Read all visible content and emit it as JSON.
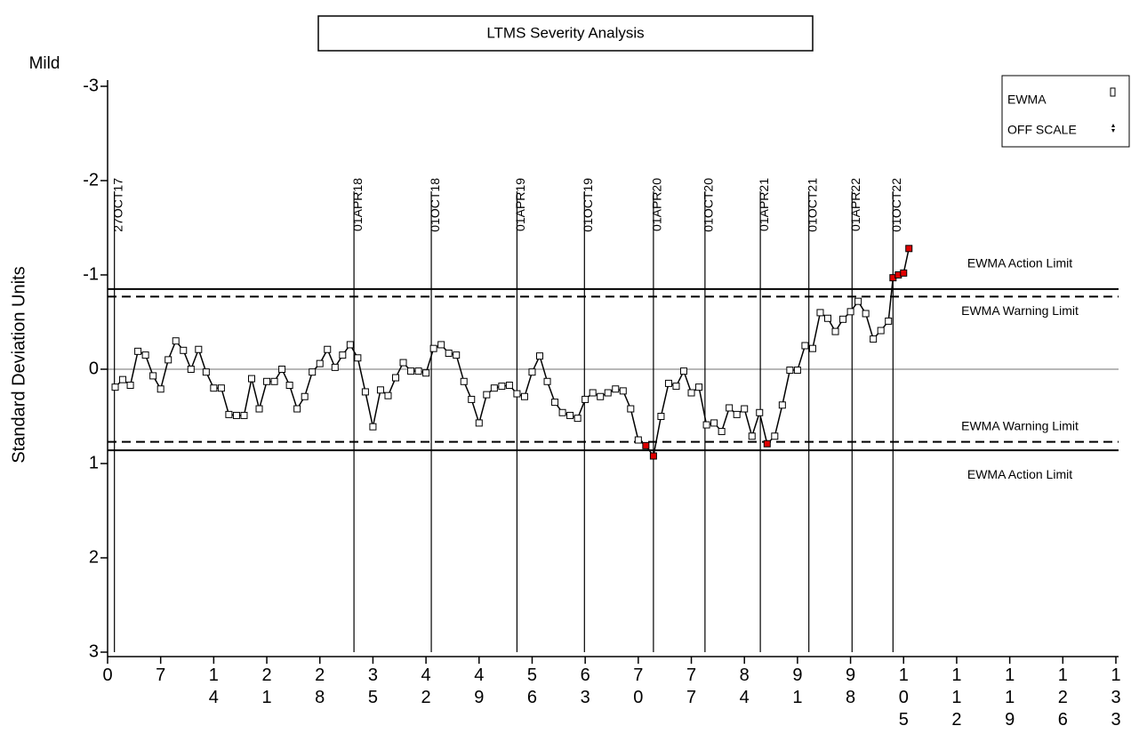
{
  "chart_data": {
    "type": "line",
    "title": "LTMS Severity Analysis",
    "subtitle": "Mild",
    "y_label": "Standard Deviation Units",
    "xlim": [
      0,
      133
    ],
    "xticks": [
      0,
      7,
      14,
      21,
      28,
      35,
      42,
      49,
      56,
      63,
      70,
      77,
      84,
      91,
      98,
      105,
      112,
      119,
      126,
      133
    ],
    "ylim": [
      -3,
      3
    ],
    "yticks": [
      -3,
      -2,
      -1,
      0,
      1,
      2,
      3
    ],
    "y_inverted": true,
    "zero_line_color": "#a0a0a0",
    "alarm_color": "#e00000",
    "series": [
      {
        "name": "EWMA",
        "color": "#000000",
        "x": [
          1,
          2,
          3,
          4,
          5,
          6,
          7,
          8,
          9,
          10,
          11,
          12,
          13,
          14,
          15,
          16,
          17,
          18,
          19,
          20,
          21,
          22,
          23,
          24,
          25,
          26,
          27,
          28,
          29,
          30,
          31,
          32,
          33,
          34,
          35,
          36,
          37,
          38,
          39,
          40,
          41,
          42,
          43,
          44,
          45,
          46,
          47,
          48,
          49,
          50,
          51,
          52,
          53,
          54,
          55,
          56,
          57,
          58,
          59,
          60,
          61,
          62,
          63,
          64,
          65,
          66,
          67,
          68,
          69,
          70,
          71,
          72,
          73,
          74,
          75,
          76,
          77,
          78,
          79,
          80,
          81,
          82,
          83,
          84,
          85,
          86,
          87,
          88,
          89,
          90,
          91,
          92,
          93,
          94,
          95,
          96,
          97,
          98,
          99,
          100,
          101,
          102,
          103,
          103.6,
          104.3,
          105,
          105.7
        ],
        "values": [
          0.19,
          0.11,
          0.17,
          -0.19,
          -0.15,
          0.07,
          0.21,
          -0.1,
          -0.3,
          -0.2,
          0,
          -0.21,
          0.03,
          0.2,
          0.2,
          0.48,
          0.49,
          0.49,
          0.1,
          0.42,
          0.13,
          0.13,
          0,
          0.17,
          0.42,
          0.29,
          0.03,
          -0.06,
          -0.21,
          -0.02,
          -0.15,
          -0.26,
          -0.12,
          0.24,
          0.61,
          0.22,
          0.28,
          0.09,
          -0.07,
          0.02,
          0.02,
          0.04,
          -0.22,
          -0.26,
          -0.17,
          -0.15,
          0.13,
          0.32,
          0.57,
          0.27,
          0.2,
          0.18,
          0.17,
          0.26,
          0.29,
          0.03,
          -0.14,
          0.13,
          0.35,
          0.46,
          0.49,
          0.52,
          0.32,
          0.25,
          0.29,
          0.25,
          0.21,
          0.23,
          0.42,
          0.75,
          0.81,
          0.92,
          0.5,
          0.15,
          0.18,
          0.02,
          0.25,
          0.19,
          0.59,
          0.57,
          0.66,
          0.41,
          0.48,
          0.42,
          0.71,
          0.46,
          0.79,
          0.71,
          0.38,
          0.01,
          0.01,
          -0.25,
          -0.22,
          -0.6,
          -0.54,
          -0.4,
          -0.53,
          -0.61,
          -0.72,
          -0.59,
          -0.32,
          -0.41,
          -0.51,
          -0.97,
          -1.0,
          -1.02,
          -1.28
        ]
      },
      {
        "name": "OFF SCALE",
        "color": "#000000",
        "x": [],
        "values": []
      }
    ],
    "limits": [
      {
        "label": "EWMA Action Limit",
        "value": -0.85,
        "kind": "action"
      },
      {
        "label": "EWMA Warning Limit",
        "value": -0.77,
        "kind": "warning"
      },
      {
        "label": "EWMA Warning Limit",
        "value": 0.77,
        "kind": "warning"
      },
      {
        "label": "EWMA Action Limit",
        "value": 0.86,
        "kind": "action"
      }
    ],
    "date_lines": [
      {
        "label": "27OCT17",
        "x": 0.9
      },
      {
        "label": "01APR18",
        "x": 32.5
      },
      {
        "label": "01OCT18",
        "x": 42.7
      },
      {
        "label": "01APR19",
        "x": 54
      },
      {
        "label": "01OCT19",
        "x": 62.9
      },
      {
        "label": "01APR20",
        "x": 72
      },
      {
        "label": "01OCT20",
        "x": 78.8
      },
      {
        "label": "01APR21",
        "x": 86.1
      },
      {
        "label": "01OCT21",
        "x": 92.5
      },
      {
        "label": "01APR22",
        "x": 98.2
      },
      {
        "label": "01OCT22",
        "x": 103.6
      }
    ]
  }
}
